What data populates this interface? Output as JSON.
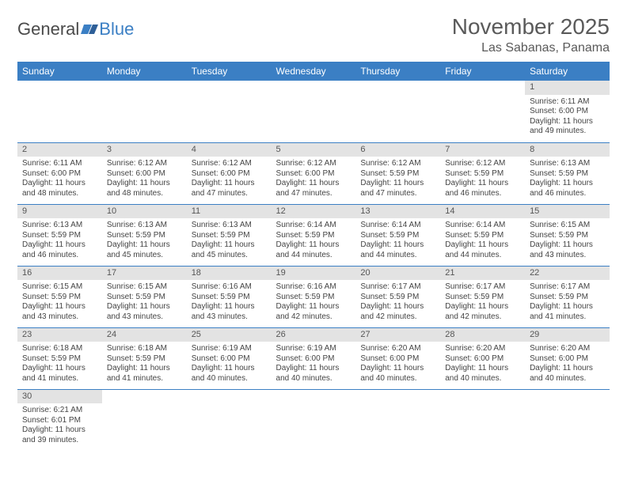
{
  "logo": {
    "text1": "General",
    "text2": "Blue"
  },
  "title": "November 2025",
  "location": "Las Sabanas, Panama",
  "colors": {
    "header_bg": "#3b7fc4",
    "header_fg": "#ffffff",
    "daynum_bg": "#e3e3e3",
    "rule": "#3b7fc4",
    "text": "#444444"
  },
  "weekdays": [
    "Sunday",
    "Monday",
    "Tuesday",
    "Wednesday",
    "Thursday",
    "Friday",
    "Saturday"
  ],
  "weeks": [
    [
      null,
      null,
      null,
      null,
      null,
      null,
      {
        "n": "1",
        "sr": "6:11 AM",
        "ss": "6:00 PM",
        "dl": "11 hours and 49 minutes."
      }
    ],
    [
      {
        "n": "2",
        "sr": "6:11 AM",
        "ss": "6:00 PM",
        "dl": "11 hours and 48 minutes."
      },
      {
        "n": "3",
        "sr": "6:12 AM",
        "ss": "6:00 PM",
        "dl": "11 hours and 48 minutes."
      },
      {
        "n": "4",
        "sr": "6:12 AM",
        "ss": "6:00 PM",
        "dl": "11 hours and 47 minutes."
      },
      {
        "n": "5",
        "sr": "6:12 AM",
        "ss": "6:00 PM",
        "dl": "11 hours and 47 minutes."
      },
      {
        "n": "6",
        "sr": "6:12 AM",
        "ss": "5:59 PM",
        "dl": "11 hours and 47 minutes."
      },
      {
        "n": "7",
        "sr": "6:12 AM",
        "ss": "5:59 PM",
        "dl": "11 hours and 46 minutes."
      },
      {
        "n": "8",
        "sr": "6:13 AM",
        "ss": "5:59 PM",
        "dl": "11 hours and 46 minutes."
      }
    ],
    [
      {
        "n": "9",
        "sr": "6:13 AM",
        "ss": "5:59 PM",
        "dl": "11 hours and 46 minutes."
      },
      {
        "n": "10",
        "sr": "6:13 AM",
        "ss": "5:59 PM",
        "dl": "11 hours and 45 minutes."
      },
      {
        "n": "11",
        "sr": "6:13 AM",
        "ss": "5:59 PM",
        "dl": "11 hours and 45 minutes."
      },
      {
        "n": "12",
        "sr": "6:14 AM",
        "ss": "5:59 PM",
        "dl": "11 hours and 44 minutes."
      },
      {
        "n": "13",
        "sr": "6:14 AM",
        "ss": "5:59 PM",
        "dl": "11 hours and 44 minutes."
      },
      {
        "n": "14",
        "sr": "6:14 AM",
        "ss": "5:59 PM",
        "dl": "11 hours and 44 minutes."
      },
      {
        "n": "15",
        "sr": "6:15 AM",
        "ss": "5:59 PM",
        "dl": "11 hours and 43 minutes."
      }
    ],
    [
      {
        "n": "16",
        "sr": "6:15 AM",
        "ss": "5:59 PM",
        "dl": "11 hours and 43 minutes."
      },
      {
        "n": "17",
        "sr": "6:15 AM",
        "ss": "5:59 PM",
        "dl": "11 hours and 43 minutes."
      },
      {
        "n": "18",
        "sr": "6:16 AM",
        "ss": "5:59 PM",
        "dl": "11 hours and 43 minutes."
      },
      {
        "n": "19",
        "sr": "6:16 AM",
        "ss": "5:59 PM",
        "dl": "11 hours and 42 minutes."
      },
      {
        "n": "20",
        "sr": "6:17 AM",
        "ss": "5:59 PM",
        "dl": "11 hours and 42 minutes."
      },
      {
        "n": "21",
        "sr": "6:17 AM",
        "ss": "5:59 PM",
        "dl": "11 hours and 42 minutes."
      },
      {
        "n": "22",
        "sr": "6:17 AM",
        "ss": "5:59 PM",
        "dl": "11 hours and 41 minutes."
      }
    ],
    [
      {
        "n": "23",
        "sr": "6:18 AM",
        "ss": "5:59 PM",
        "dl": "11 hours and 41 minutes."
      },
      {
        "n": "24",
        "sr": "6:18 AM",
        "ss": "5:59 PM",
        "dl": "11 hours and 41 minutes."
      },
      {
        "n": "25",
        "sr": "6:19 AM",
        "ss": "6:00 PM",
        "dl": "11 hours and 40 minutes."
      },
      {
        "n": "26",
        "sr": "6:19 AM",
        "ss": "6:00 PM",
        "dl": "11 hours and 40 minutes."
      },
      {
        "n": "27",
        "sr": "6:20 AM",
        "ss": "6:00 PM",
        "dl": "11 hours and 40 minutes."
      },
      {
        "n": "28",
        "sr": "6:20 AM",
        "ss": "6:00 PM",
        "dl": "11 hours and 40 minutes."
      },
      {
        "n": "29",
        "sr": "6:20 AM",
        "ss": "6:00 PM",
        "dl": "11 hours and 40 minutes."
      }
    ],
    [
      {
        "n": "30",
        "sr": "6:21 AM",
        "ss": "6:01 PM",
        "dl": "11 hours and 39 minutes."
      },
      null,
      null,
      null,
      null,
      null,
      null
    ]
  ],
  "labels": {
    "sunrise": "Sunrise:",
    "sunset": "Sunset:",
    "daylight": "Daylight:"
  }
}
